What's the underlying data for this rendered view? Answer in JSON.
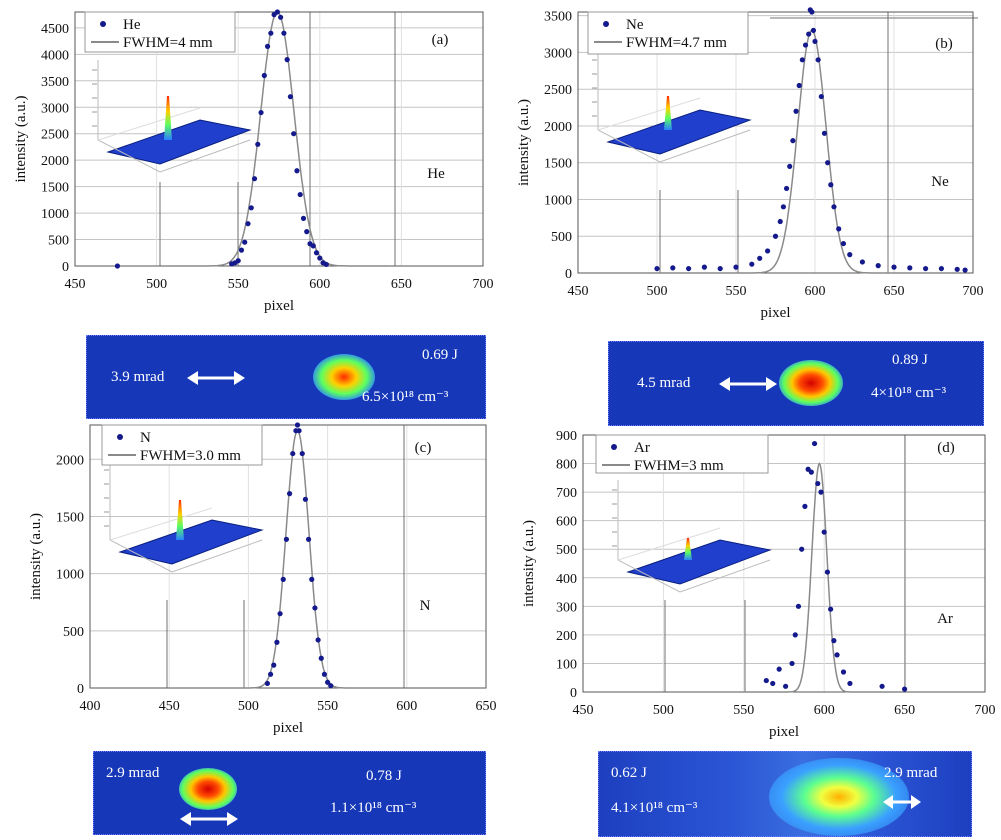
{
  "chart_data": [
    {
      "panel": "(a)",
      "type": "scatter",
      "xlabel": "pixel",
      "ylabel": "intensity (a.u.)",
      "xlim": [
        450,
        700
      ],
      "ylim": [
        0,
        4800
      ],
      "xticks": [
        450,
        500,
        550,
        600,
        650,
        700
      ],
      "yticks": [
        0,
        500,
        1000,
        1500,
        2000,
        2500,
        3000,
        3500,
        4000,
        4500
      ],
      "legend": [
        "He",
        "FWHM=4 mm"
      ],
      "annotation": "He",
      "fit": {
        "center": 574,
        "fwhm": 24,
        "amplitude": 4800,
        "range": [
          508,
          642
        ]
      },
      "series": [
        {
          "name": "He",
          "x": [
            476,
            546,
            548,
            550,
            552,
            554,
            556,
            558,
            560,
            562,
            564,
            566,
            568,
            570,
            572,
            574,
            576,
            578,
            580,
            582,
            584,
            586,
            588,
            590,
            592,
            594,
            596,
            598,
            600,
            602,
            604
          ],
          "y": [
            0,
            40,
            60,
            100,
            300,
            450,
            800,
            1100,
            1650,
            2300,
            2900,
            3600,
            4150,
            4400,
            4750,
            4800,
            4700,
            4400,
            3900,
            3200,
            2500,
            1800,
            1350,
            900,
            650,
            420,
            380,
            250,
            150,
            60,
            30
          ]
        }
      ]
    },
    {
      "panel": "(b)",
      "type": "scatter",
      "xlabel": "pixel",
      "ylabel": "intensity (a.u.)",
      "xlim": [
        450,
        700
      ],
      "ylim": [
        0,
        3550
      ],
      "xticks": [
        450,
        500,
        550,
        600,
        650,
        700
      ],
      "yticks": [
        0,
        500,
        1000,
        1500,
        2000,
        2500,
        3000,
        3500
      ],
      "legend": [
        "Ne",
        "FWHM=4.7 mm"
      ],
      "annotation": "Ne",
      "fit": {
        "center": 598,
        "fwhm": 21,
        "amplitude": 3300,
        "range": [
          495,
          690
        ]
      },
      "series": [
        {
          "name": "Ne",
          "x": [
            500,
            510,
            520,
            530,
            540,
            550,
            560,
            565,
            570,
            575,
            578,
            580,
            582,
            584,
            586,
            588,
            590,
            592,
            594,
            596,
            597,
            598,
            599,
            600,
            602,
            604,
            606,
            608,
            610,
            612,
            615,
            618,
            622,
            630,
            640,
            650,
            660,
            670,
            680,
            690,
            695
          ],
          "y": [
            60,
            70,
            60,
            80,
            60,
            80,
            120,
            200,
            300,
            500,
            700,
            900,
            1150,
            1450,
            1800,
            2200,
            2550,
            2900,
            3100,
            3250,
            3580,
            3550,
            3300,
            3150,
            2900,
            2400,
            1900,
            1500,
            1200,
            900,
            600,
            400,
            250,
            150,
            100,
            80,
            70,
            60,
            60,
            50,
            40
          ]
        }
      ]
    },
    {
      "panel": "(c)",
      "type": "scatter",
      "xlabel": "pixel",
      "ylabel": "intensity (a.u.)",
      "xlim": [
        400,
        650
      ],
      "ylim": [
        0,
        2300
      ],
      "xticks": [
        400,
        450,
        500,
        550,
        600,
        650
      ],
      "yticks": [
        0,
        500,
        1000,
        1500,
        2000
      ],
      "legend": [
        "N",
        "FWHM=3.0 mm"
      ],
      "annotation": "N",
      "fit": {
        "center": 531,
        "fwhm": 17,
        "amplitude": 2250,
        "range": [
          475,
          584
        ]
      },
      "series": [
        {
          "name": "N",
          "x": [
            512,
            514,
            516,
            518,
            520,
            522,
            524,
            526,
            528,
            530,
            531,
            532,
            534,
            536,
            538,
            540,
            542,
            544,
            546,
            548,
            550,
            552
          ],
          "y": [
            40,
            120,
            200,
            400,
            650,
            950,
            1300,
            1700,
            2050,
            2250,
            2300,
            2250,
            2050,
            1650,
            1300,
            950,
            700,
            420,
            260,
            120,
            50,
            20
          ]
        }
      ]
    },
    {
      "panel": "(d)",
      "type": "scatter",
      "xlabel": "pixel",
      "ylabel": "intensity (a.u.)",
      "xlim": [
        450,
        700
      ],
      "ylim": [
        0,
        900
      ],
      "xticks": [
        450,
        500,
        550,
        600,
        650,
        700
      ],
      "yticks": [
        0,
        100,
        200,
        300,
        400,
        500,
        600,
        700,
        800,
        900
      ],
      "legend": [
        "Ar",
        "FWHM=3 mm"
      ],
      "annotation": "Ar",
      "fit": {
        "center": 597,
        "fwhm": 11,
        "amplitude": 800,
        "range": [
          547,
          650
        ]
      },
      "series": [
        {
          "name": "Ar",
          "x": [
            564,
            568,
            572,
            576,
            580,
            582,
            584,
            586,
            588,
            590,
            592,
            594,
            596,
            598,
            600,
            602,
            604,
            606,
            608,
            612,
            616,
            636,
            650
          ],
          "y": [
            40,
            30,
            80,
            20,
            100,
            200,
            300,
            500,
            650,
            780,
            770,
            870,
            730,
            700,
            560,
            420,
            290,
            180,
            130,
            70,
            30,
            20,
            10
          ]
        }
      ]
    }
  ],
  "beams": [
    {
      "id": "a",
      "divergence": "3.9 mrad",
      "energy": "0.69 J",
      "density": "6.5×10¹⁸ cm⁻³"
    },
    {
      "id": "b",
      "divergence": "4.5 mrad",
      "energy": "0.89 J",
      "density": "4×10¹⁸ cm⁻³"
    },
    {
      "id": "c",
      "divergence": "2.9 mrad",
      "energy": "0.78 J",
      "density": "1.1×10¹⁸ cm⁻³"
    },
    {
      "id": "d",
      "divergence": "2.9 mrad",
      "energy": "0.62 J",
      "density": "4.1×10¹⁸ cm⁻³"
    }
  ]
}
